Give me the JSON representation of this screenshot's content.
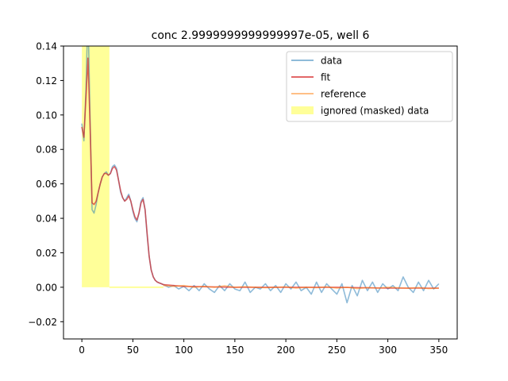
{
  "chart_data": {
    "type": "line",
    "title": "conc 2.9999999999999997e-05, well 6",
    "xlabel": "",
    "ylabel": "",
    "xlim": [
      -18,
      368
    ],
    "ylim": [
      -0.03,
      0.14
    ],
    "xticks": [
      0,
      50,
      100,
      150,
      200,
      250,
      300,
      350
    ],
    "xtick_labels": [
      "0",
      "50",
      "100",
      "150",
      "200",
      "250",
      "300",
      "350"
    ],
    "yticks": [
      -0.02,
      0.0,
      0.02,
      0.04,
      0.06,
      0.08,
      0.1,
      0.12,
      0.14
    ],
    "ytick_labels": [
      "−0.02",
      "0.00",
      "0.02",
      "0.04",
      "0.06",
      "0.08",
      "0.10",
      "0.12",
      "0.14"
    ],
    "grid": false,
    "legend_position": "top-right",
    "masked_region": {
      "name": "ignored (masked) data",
      "x": [
        0,
        27
      ],
      "y": [
        0,
        0.14
      ],
      "color": "#ffff99",
      "base_fill": {
        "x": [
          27,
          80
        ],
        "y": 0
      }
    },
    "series": [
      {
        "name": "data",
        "color": "#1f77b4",
        "opacity": 0.5,
        "x": [
          0,
          2,
          4,
          6,
          8,
          10,
          12,
          14,
          16,
          18,
          20,
          22,
          24,
          26,
          28,
          30,
          32,
          34,
          36,
          38,
          40,
          42,
          44,
          46,
          48,
          50,
          52,
          54,
          56,
          58,
          60,
          62,
          64,
          66,
          68,
          70,
          72,
          74,
          76,
          78,
          80,
          85,
          90,
          95,
          100,
          105,
          110,
          115,
          120,
          125,
          130,
          135,
          140,
          145,
          150,
          155,
          160,
          165,
          170,
          175,
          180,
          185,
          190,
          195,
          200,
          205,
          210,
          215,
          220,
          225,
          230,
          235,
          240,
          245,
          250,
          255,
          260,
          265,
          270,
          275,
          280,
          285,
          290,
          295,
          300,
          305,
          310,
          315,
          320,
          325,
          330,
          335,
          340,
          345,
          350
        ],
        "y": [
          0.095,
          0.085,
          0.115,
          0.16,
          0.1,
          0.045,
          0.043,
          0.048,
          0.055,
          0.06,
          0.064,
          0.066,
          0.067,
          0.065,
          0.066,
          0.07,
          0.071,
          0.069,
          0.062,
          0.055,
          0.052,
          0.05,
          0.052,
          0.054,
          0.05,
          0.044,
          0.04,
          0.038,
          0.043,
          0.05,
          0.052,
          0.045,
          0.03,
          0.018,
          0.01,
          0.006,
          0.004,
          0.003,
          0.0025,
          0.002,
          0.0015,
          0.0,
          0.001,
          -0.001,
          0.0005,
          -0.002,
          0.001,
          -0.002,
          0.002,
          -0.001,
          -0.003,
          0.001,
          -0.002,
          0.002,
          -0.001,
          -0.002,
          0.003,
          -0.003,
          0.0,
          -0.001,
          0.002,
          -0.002,
          0.001,
          -0.003,
          0.002,
          -0.001,
          0.003,
          -0.002,
          0.0,
          -0.004,
          0.003,
          -0.003,
          0.002,
          -0.001,
          -0.004,
          0.002,
          -0.009,
          0.001,
          -0.005,
          0.004,
          -0.002,
          0.003,
          -0.003,
          0.002,
          -0.001,
          0.001,
          -0.002,
          0.006,
          0.0,
          -0.003,
          0.003,
          -0.002,
          0.004,
          -0.001,
          0.002
        ],
        "x2": [],
        "y2": []
      },
      {
        "name": "fit",
        "color": "#d62728",
        "opacity": 0.7,
        "x": [
          0,
          2,
          4,
          6,
          8,
          10,
          12,
          14,
          16,
          18,
          20,
          22,
          24,
          26,
          28,
          30,
          32,
          34,
          36,
          38,
          40,
          42,
          44,
          46,
          48,
          50,
          52,
          54,
          56,
          58,
          60,
          62,
          64,
          66,
          68,
          70,
          72,
          74,
          76,
          78,
          80,
          90,
          100,
          150,
          200,
          250,
          300,
          350
        ],
        "y": [
          0.093,
          0.087,
          0.11,
          0.133,
          0.095,
          0.049,
          0.048,
          0.05,
          0.055,
          0.06,
          0.064,
          0.066,
          0.066,
          0.065,
          0.066,
          0.069,
          0.07,
          0.068,
          0.062,
          0.056,
          0.052,
          0.05,
          0.051,
          0.053,
          0.05,
          0.045,
          0.041,
          0.039,
          0.043,
          0.049,
          0.051,
          0.045,
          0.031,
          0.018,
          0.01,
          0.006,
          0.004,
          0.003,
          0.0025,
          0.002,
          0.0015,
          0.001,
          0.0005,
          0.0,
          0.0,
          0.0,
          -0.0005,
          -0.0005
        ]
      },
      {
        "name": "reference",
        "color": "#ff7f0e",
        "opacity": 0.5,
        "x": [
          80,
          90,
          100,
          110,
          120,
          130,
          140,
          150,
          160,
          170,
          180,
          190,
          200,
          210,
          220,
          230,
          240,
          250,
          260,
          270,
          280,
          290,
          300,
          310,
          320,
          330,
          340,
          350
        ],
        "y": [
          0.001,
          0.0005,
          0.001,
          0.0,
          0.0005,
          0.0,
          0.0008,
          0.0,
          0.0003,
          0.0,
          -0.0003,
          0.0,
          0.0002,
          -0.0005,
          0.0,
          -0.0003,
          0.0002,
          -0.0005,
          0.0,
          -0.0008,
          -0.0002,
          -0.0005,
          0.0,
          -0.0003,
          -0.0006,
          -0.0002,
          -0.0008,
          -0.0005
        ]
      }
    ]
  }
}
